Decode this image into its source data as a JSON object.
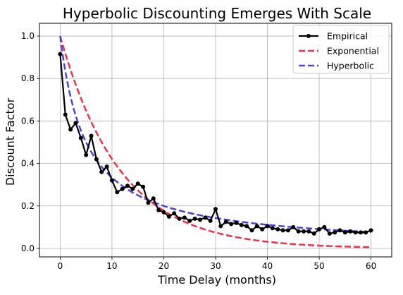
{
  "chart_data": {
    "type": "line",
    "title": "Hyperbolic Discounting Emerges With Scale",
    "xlabel": "Time Delay (months)",
    "ylabel": "Discount Factor",
    "xlim": [
      -4,
      64
    ],
    "ylim": [
      -0.04,
      1.06
    ],
    "xticks": [
      "0",
      "10",
      "20",
      "30",
      "40",
      "50",
      "60"
    ],
    "yticks": [
      "0.0",
      "0.2",
      "0.4",
      "0.6",
      "0.8",
      "1.0"
    ],
    "grid": true,
    "legend_position": "top-right",
    "series": [
      {
        "name": "Empirical",
        "style": "solid-markers",
        "color": "#000000",
        "x": [
          0,
          1,
          2,
          3,
          4,
          5,
          6,
          7,
          8,
          9,
          10,
          11,
          12,
          13,
          14,
          15,
          16,
          17,
          18,
          19,
          20,
          21,
          22,
          23,
          24,
          25,
          26,
          27,
          28,
          29,
          30,
          31,
          32,
          33,
          34,
          35,
          36,
          37,
          38,
          39,
          40,
          41,
          42,
          43,
          44,
          45,
          46,
          47,
          48,
          49,
          50,
          51,
          52,
          53,
          54,
          55,
          56,
          57,
          58,
          59,
          60
        ],
        "values": [
          0.915,
          0.63,
          0.56,
          0.59,
          0.52,
          0.44,
          0.53,
          0.42,
          0.36,
          0.385,
          0.32,
          0.265,
          0.28,
          0.295,
          0.28,
          0.305,
          0.29,
          0.215,
          0.235,
          0.18,
          0.17,
          0.15,
          0.165,
          0.14,
          0.145,
          0.13,
          0.14,
          0.135,
          0.145,
          0.13,
          0.185,
          0.105,
          0.125,
          0.115,
          0.12,
          0.11,
          0.105,
          0.085,
          0.105,
          0.09,
          0.105,
          0.095,
          0.09,
          0.085,
          0.085,
          0.1,
          0.08,
          0.08,
          0.08,
          0.07,
          0.09,
          0.1,
          0.07,
          0.075,
          0.085,
          0.075,
          0.08,
          0.075,
          0.075,
          0.075,
          0.085
        ]
      },
      {
        "name": "Exponential",
        "style": "dashed",
        "color": "#f03048",
        "formula": "exp(-0.0865*x)"
      },
      {
        "name": "Hyperbolic",
        "style": "dashed",
        "color": "#4b44d6",
        "formula": "1/(1+0.2*x)"
      }
    ]
  }
}
